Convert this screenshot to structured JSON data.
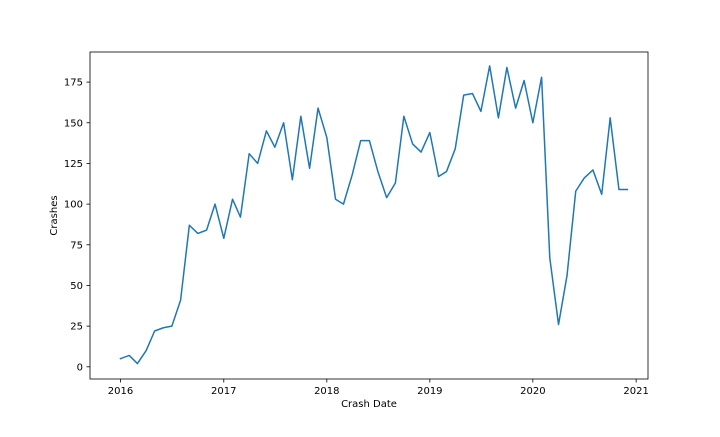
{
  "chart_data": {
    "type": "line",
    "title": "",
    "xlabel": "Crash Date",
    "ylabel": "Crashes",
    "xlim": [
      "2015-09-15",
      "2021-02-12"
    ],
    "ylim": [
      -7.5,
      193.5
    ],
    "xtick_labels": [
      {
        "date": "2016-01-01",
        "label": "2016"
      },
      {
        "date": "2017-01-01",
        "label": "2017"
      },
      {
        "date": "2018-01-01",
        "label": "2018"
      },
      {
        "date": "2019-01-01",
        "label": "2019"
      },
      {
        "date": "2020-01-01",
        "label": "2020"
      },
      {
        "date": "2021-01-01",
        "label": "2021"
      }
    ],
    "ytick_labels": [
      {
        "value": 0,
        "label": "0"
      },
      {
        "value": 25,
        "label": "25"
      },
      {
        "value": 50,
        "label": "50"
      },
      {
        "value": 75,
        "label": "75"
      },
      {
        "value": 100,
        "label": "100"
      },
      {
        "value": 125,
        "label": "125"
      },
      {
        "value": 150,
        "label": "150"
      },
      {
        "value": 175,
        "label": "175"
      }
    ],
    "grid": false,
    "series": [
      {
        "color": "#1f77b4",
        "x": [
          "2016-01-01",
          "2016-02-01",
          "2016-03-01",
          "2016-04-01",
          "2016-05-01",
          "2016-06-01",
          "2016-07-01",
          "2016-08-01",
          "2016-09-01",
          "2016-10-01",
          "2016-11-01",
          "2016-12-01",
          "2017-01-01",
          "2017-02-01",
          "2017-03-01",
          "2017-04-01",
          "2017-05-01",
          "2017-06-01",
          "2017-07-01",
          "2017-08-01",
          "2017-09-01",
          "2017-10-01",
          "2017-11-01",
          "2017-12-01",
          "2018-01-01",
          "2018-02-01",
          "2018-03-01",
          "2018-04-01",
          "2018-05-01",
          "2018-06-01",
          "2018-07-01",
          "2018-08-01",
          "2018-09-01",
          "2018-10-01",
          "2018-11-01",
          "2018-12-01",
          "2019-01-01",
          "2019-02-01",
          "2019-03-01",
          "2019-04-01",
          "2019-05-01",
          "2019-06-01",
          "2019-07-01",
          "2019-08-01",
          "2019-09-01",
          "2019-10-01",
          "2019-11-01",
          "2019-12-01",
          "2020-01-01",
          "2020-02-01",
          "2020-03-01",
          "2020-04-01",
          "2020-05-01",
          "2020-06-01",
          "2020-07-01",
          "2020-08-01",
          "2020-09-01",
          "2020-10-01",
          "2020-11-01",
          "2020-12-01"
        ],
        "values": [
          5,
          7,
          2,
          10,
          22,
          24,
          25,
          41,
          87,
          82,
          84,
          100,
          79,
          103,
          92,
          131,
          125,
          145,
          135,
          150,
          115,
          154,
          122,
          159,
          141,
          103,
          100,
          118,
          139,
          139,
          120,
          104,
          113,
          154,
          137,
          132,
          144,
          117,
          120,
          134,
          167,
          168,
          157,
          185,
          153,
          184,
          159,
          176,
          150,
          178,
          67,
          26,
          56,
          108,
          116,
          121,
          106,
          153,
          109,
          109
        ]
      }
    ]
  }
}
